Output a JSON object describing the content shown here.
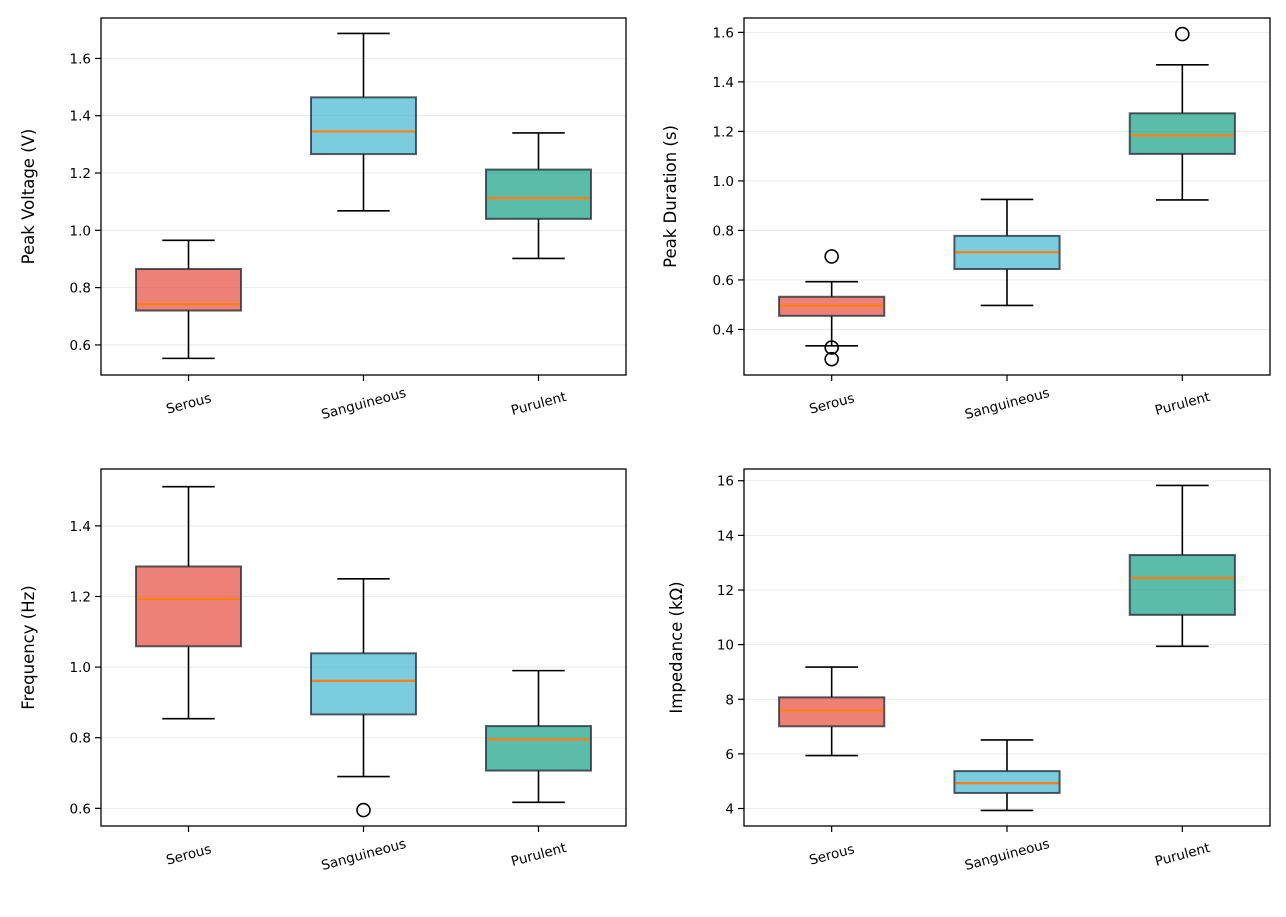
{
  "figure": {
    "title": "",
    "colors": {
      "Serous": "#e74c3c",
      "Sanguineous": "#45b7d1",
      "Purulent": "#16a085",
      "median": "#ff7f0e",
      "box_edge": "#2c3e50",
      "grid": "#e6e6e6"
    }
  },
  "chart_data": [
    {
      "type": "box",
      "title": "",
      "xlabel": "",
      "ylabel": "Peak Voltage (V)",
      "categories": [
        "Serous",
        "Sanguineous",
        "Purulent"
      ],
      "ylim": [
        0.495,
        1.741
      ],
      "yticks": [
        0.6,
        0.8,
        1.0,
        1.2,
        1.4,
        1.6
      ],
      "ytick_labels": [
        "0.6",
        "0.8",
        "1.0",
        "1.2",
        "1.4",
        "1.6"
      ],
      "grid": "y",
      "series": [
        {
          "name": "Serous",
          "whisker_low": 0.553,
          "q1": 0.72,
          "median": 0.742,
          "q3": 0.865,
          "whisker_high": 0.965,
          "outliers": []
        },
        {
          "name": "Sanguineous",
          "whisker_low": 1.068,
          "q1": 1.266,
          "median": 1.345,
          "q3": 1.464,
          "whisker_high": 1.687,
          "outliers": []
        },
        {
          "name": "Purulent",
          "whisker_low": 0.902,
          "q1": 1.04,
          "median": 1.112,
          "q3": 1.212,
          "whisker_high": 1.34,
          "outliers": []
        }
      ]
    },
    {
      "type": "box",
      "title": "",
      "xlabel": "",
      "ylabel": "Peak Duration (s)",
      "categories": [
        "Serous",
        "Sanguineous",
        "Purulent"
      ],
      "ylim": [
        0.216,
        1.658
      ],
      "yticks": [
        0.4,
        0.6,
        0.8,
        1.0,
        1.2,
        1.4,
        1.6
      ],
      "ytick_labels": [
        "0.4",
        "0.6",
        "0.8",
        "1.0",
        "1.2",
        "1.4",
        "1.6"
      ],
      "grid": "y",
      "series": [
        {
          "name": "Serous",
          "whisker_low": 0.334,
          "q1": 0.455,
          "median": 0.496,
          "q3": 0.532,
          "whisker_high": 0.593,
          "outliers": [
            0.695,
            0.327,
            0.28
          ]
        },
        {
          "name": "Sanguineous",
          "whisker_low": 0.497,
          "q1": 0.644,
          "median": 0.712,
          "q3": 0.778,
          "whisker_high": 0.925,
          "outliers": []
        },
        {
          "name": "Purulent",
          "whisker_low": 0.923,
          "q1": 1.109,
          "median": 1.184,
          "q3": 1.273,
          "whisker_high": 1.469,
          "outliers": [
            1.593
          ]
        }
      ]
    },
    {
      "type": "box",
      "title": "",
      "xlabel": "",
      "ylabel": "Frequency (Hz)",
      "categories": [
        "Serous",
        "Sanguineous",
        "Purulent"
      ],
      "ylim": [
        0.55,
        1.561
      ],
      "yticks": [
        0.6,
        0.8,
        1.0,
        1.2,
        1.4
      ],
      "ytick_labels": [
        "0.6",
        "0.8",
        "1.0",
        "1.2",
        "1.4"
      ],
      "grid": "y",
      "series": [
        {
          "name": "Serous",
          "whisker_low": 0.854,
          "q1": 1.059,
          "median": 1.193,
          "q3": 1.285,
          "whisker_high": 1.511,
          "outliers": []
        },
        {
          "name": "Sanguineous",
          "whisker_low": 0.69,
          "q1": 0.866,
          "median": 0.961,
          "q3": 1.039,
          "whisker_high": 1.25,
          "outliers": [
            0.595
          ]
        },
        {
          "name": "Purulent",
          "whisker_low": 0.617,
          "q1": 0.707,
          "median": 0.795,
          "q3": 0.833,
          "whisker_high": 0.99,
          "outliers": []
        }
      ]
    },
    {
      "type": "box",
      "title": "",
      "xlabel": "",
      "ylabel": "Impedance (kΩ)",
      "categories": [
        "Serous",
        "Sanguineous",
        "Purulent"
      ],
      "ylim": [
        3.36,
        16.43
      ],
      "yticks": [
        4,
        6,
        8,
        10,
        12,
        14,
        16
      ],
      "ytick_labels": [
        "4",
        "6",
        "8",
        "10",
        "12",
        "14",
        "16"
      ],
      "grid": "y",
      "series": [
        {
          "name": "Serous",
          "whisker_low": 5.94,
          "q1": 7.01,
          "median": 7.59,
          "q3": 8.07,
          "whisker_high": 9.18,
          "outliers": []
        },
        {
          "name": "Sanguineous",
          "whisker_low": 3.93,
          "q1": 4.57,
          "median": 4.93,
          "q3": 5.37,
          "whisker_high": 6.51,
          "outliers": []
        },
        {
          "name": "Purulent",
          "whisker_low": 9.94,
          "q1": 11.09,
          "median": 12.44,
          "q3": 13.28,
          "whisker_high": 15.83,
          "outliers": []
        }
      ]
    }
  ]
}
